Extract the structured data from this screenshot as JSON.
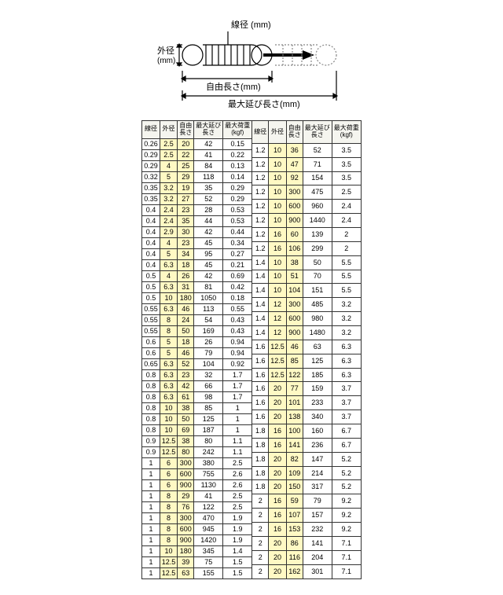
{
  "diagram": {
    "lbl_wire": "線径 (mm)",
    "lbl_outer": "外径\n(mm)",
    "lbl_free": "自由長さ(mm)",
    "lbl_max_ext": "最大延び長さ(mm)"
  },
  "headers": [
    "線径",
    "外径",
    "自由長さ",
    "最大延び長さ",
    "最大荷重(kgf)"
  ],
  "hl_cols": [
    1,
    2
  ],
  "left": [
    [
      "0.26",
      "2.5",
      "20",
      "42",
      "0.15"
    ],
    [
      "0.29",
      "2.5",
      "22",
      "41",
      "0.22"
    ],
    [
      "0.29",
      "4",
      "25",
      "84",
      "0.13"
    ],
    [
      "0.32",
      "5",
      "29",
      "118",
      "0.14"
    ],
    [
      "0.35",
      "3.2",
      "19",
      "35",
      "0.29"
    ],
    [
      "0.35",
      "3.2",
      "27",
      "52",
      "0.29"
    ],
    [
      "0.4",
      "2.4",
      "23",
      "28",
      "0.53"
    ],
    [
      "0.4",
      "2.4",
      "35",
      "44",
      "0.53"
    ],
    [
      "0.4",
      "2.9",
      "30",
      "42",
      "0.44"
    ],
    [
      "0.4",
      "4",
      "23",
      "45",
      "0.34"
    ],
    [
      "0.4",
      "5",
      "34",
      "95",
      "0.27"
    ],
    [
      "0.4",
      "6.3",
      "18",
      "45",
      "0.21"
    ],
    [
      "0.5",
      "4",
      "26",
      "42",
      "0.69"
    ],
    [
      "0.5",
      "6.3",
      "31",
      "81",
      "0.42"
    ],
    [
      "0.5",
      "10",
      "180",
      "1050",
      "0.18"
    ],
    [
      "0.55",
      "6.3",
      "46",
      "113",
      "0.55"
    ],
    [
      "0.55",
      "8",
      "24",
      "54",
      "0.43"
    ],
    [
      "0.55",
      "8",
      "50",
      "169",
      "0.43"
    ],
    [
      "0.6",
      "5",
      "18",
      "26",
      "0.94"
    ],
    [
      "0.6",
      "5",
      "46",
      "79",
      "0.94"
    ],
    [
      "0.65",
      "6.3",
      "52",
      "104",
      "0.92"
    ],
    [
      "0.8",
      "6.3",
      "23",
      "32",
      "1.7"
    ],
    [
      "0.8",
      "6.3",
      "42",
      "66",
      "1.7"
    ],
    [
      "0.8",
      "6.3",
      "61",
      "98",
      "1.7"
    ],
    [
      "0.8",
      "10",
      "38",
      "85",
      "1"
    ],
    [
      "0.8",
      "10",
      "50",
      "125",
      "1"
    ],
    [
      "0.8",
      "10",
      "69",
      "187",
      "1"
    ],
    [
      "0.9",
      "12.5",
      "38",
      "80",
      "1.1"
    ],
    [
      "0.9",
      "12.5",
      "80",
      "242",
      "1.1"
    ],
    [
      "1",
      "6",
      "300",
      "380",
      "2.5"
    ],
    [
      "1",
      "6",
      "600",
      "755",
      "2.6"
    ],
    [
      "1",
      "6",
      "900",
      "1130",
      "2.6"
    ],
    [
      "1",
      "8",
      "29",
      "41",
      "2.5"
    ],
    [
      "1",
      "8",
      "76",
      "122",
      "2.5"
    ],
    [
      "1",
      "8",
      "300",
      "470",
      "1.9"
    ],
    [
      "1",
      "8",
      "600",
      "945",
      "1.9"
    ],
    [
      "1",
      "8",
      "900",
      "1420",
      "1.9"
    ],
    [
      "1",
      "10",
      "180",
      "345",
      "1.4"
    ],
    [
      "1",
      "12.5",
      "39",
      "75",
      "1.5"
    ],
    [
      "1",
      "12.5",
      "63",
      "155",
      "1.5"
    ]
  ],
  "right": [
    [
      "1.2",
      "10",
      "36",
      "52",
      "3.5"
    ],
    [
      "1.2",
      "10",
      "47",
      "71",
      "3.5"
    ],
    [
      "1.2",
      "10",
      "92",
      "154",
      "3.5"
    ],
    [
      "1.2",
      "10",
      "300",
      "475",
      "2.5"
    ],
    [
      "1.2",
      "10",
      "600",
      "960",
      "2.4"
    ],
    [
      "1.2",
      "10",
      "900",
      "1440",
      "2.4"
    ],
    [
      "1.2",
      "16",
      "60",
      "139",
      "2"
    ],
    [
      "1.2",
      "16",
      "106",
      "299",
      "2"
    ],
    [
      "1.4",
      "10",
      "38",
      "50",
      "5.5"
    ],
    [
      "1.4",
      "10",
      "51",
      "70",
      "5.5"
    ],
    [
      "1.4",
      "10",
      "104",
      "151",
      "5.5"
    ],
    [
      "1.4",
      "12",
      "300",
      "485",
      "3.2"
    ],
    [
      "1.4",
      "12",
      "600",
      "980",
      "3.2"
    ],
    [
      "1.4",
      "12",
      "900",
      "1480",
      "3.2"
    ],
    [
      "1.6",
      "12.5",
      "46",
      "63",
      "6.3"
    ],
    [
      "1.6",
      "12.5",
      "85",
      "125",
      "6.3"
    ],
    [
      "1.6",
      "12.5",
      "122",
      "185",
      "6.3"
    ],
    [
      "1.6",
      "20",
      "77",
      "159",
      "3.7"
    ],
    [
      "1.6",
      "20",
      "101",
      "233",
      "3.7"
    ],
    [
      "1.6",
      "20",
      "138",
      "340",
      "3.7"
    ],
    [
      "1.8",
      "16",
      "100",
      "160",
      "6.7"
    ],
    [
      "1.8",
      "16",
      "141",
      "236",
      "6.7"
    ],
    [
      "1.8",
      "20",
      "82",
      "147",
      "5.2"
    ],
    [
      "1.8",
      "20",
      "109",
      "214",
      "5.2"
    ],
    [
      "1.8",
      "20",
      "150",
      "317",
      "5.2"
    ],
    [
      "2",
      "16",
      "59",
      "79",
      "9.2"
    ],
    [
      "2",
      "16",
      "107",
      "157",
      "9.2"
    ],
    [
      "2",
      "16",
      "153",
      "232",
      "9.2"
    ],
    [
      "2",
      "20",
      "86",
      "141",
      "7.1"
    ],
    [
      "2",
      "20",
      "116",
      "204",
      "7.1"
    ],
    [
      "2",
      "20",
      "162",
      "301",
      "7.1"
    ]
  ]
}
